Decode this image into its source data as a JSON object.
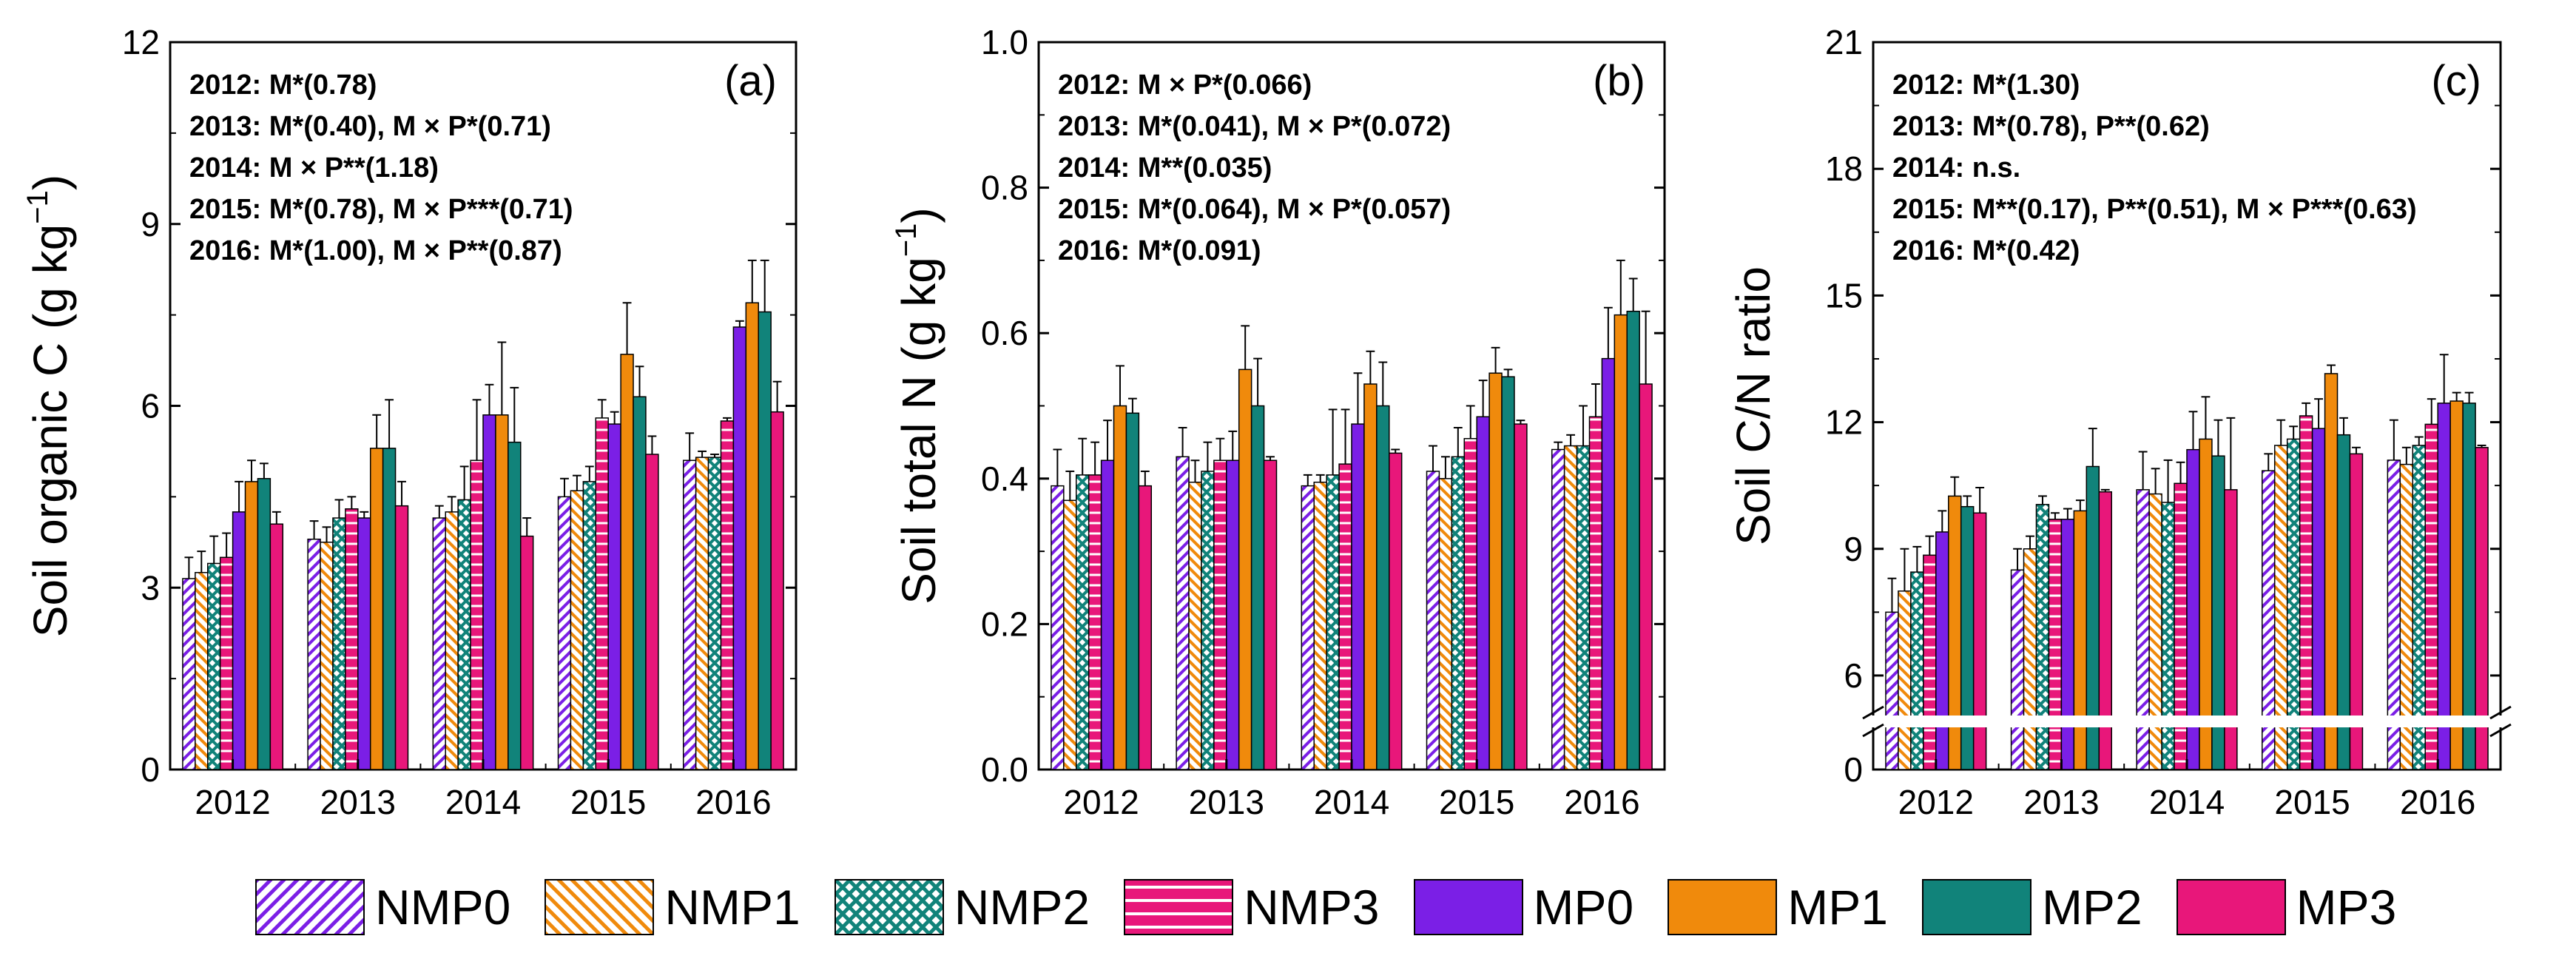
{
  "colors": {
    "purple": "#7b1fe6",
    "orange": "#f08a0c",
    "teal": "#11837a",
    "pink": "#e8177a"
  },
  "legend": [
    {
      "name": "NMP0",
      "color": "#7b1fe6",
      "pattern": "diag-up"
    },
    {
      "name": "NMP1",
      "color": "#f08a0c",
      "pattern": "diag-down"
    },
    {
      "name": "NMP2",
      "color": "#11837a",
      "pattern": "cross"
    },
    {
      "name": "NMP3",
      "color": "#e8177a",
      "pattern": "horiz"
    },
    {
      "name": "MP0",
      "color": "#7b1fe6",
      "pattern": "solid"
    },
    {
      "name": "MP1",
      "color": "#f08a0c",
      "pattern": "solid"
    },
    {
      "name": "MP2",
      "color": "#11837a",
      "pattern": "solid"
    },
    {
      "name": "MP3",
      "color": "#e8177a",
      "pattern": "solid"
    }
  ],
  "chart_data": [
    {
      "type": "bar",
      "panel_label": "(a)",
      "ylabel": "Soil organic C (g kg",
      "ylabel_sup": "−1",
      "ylabel_end": ")",
      "xlabel": "",
      "categories": [
        "2012",
        "2013",
        "2014",
        "2015",
        "2016"
      ],
      "ylim": [
        0,
        12
      ],
      "yticks": [
        0,
        3,
        6,
        9,
        12
      ],
      "ytick_labels": [
        "0",
        "3",
        "6",
        "9",
        "12"
      ],
      "axis_break": false,
      "annotations": [
        "2012: M*(0.78)",
        "2013: M*(0.40), M × P*(0.71)",
        "2014: M × P**(1.18)",
        "2015: M*(0.78), M × P***(0.71)",
        "2016: M*(1.00), M × P**(0.87)"
      ],
      "series": [
        {
          "name": "NMP0",
          "values": [
            3.15,
            3.8,
            4.15,
            4.5,
            5.1
          ],
          "errors": [
            0.35,
            0.3,
            0.2,
            0.3,
            0.45
          ]
        },
        {
          "name": "NMP1",
          "values": [
            3.25,
            3.75,
            4.25,
            4.6,
            5.15
          ],
          "errors": [
            0.35,
            0.25,
            0.25,
            0.25,
            0.1
          ]
        },
        {
          "name": "NMP2",
          "values": [
            3.4,
            4.15,
            4.45,
            4.75,
            5.15
          ],
          "errors": [
            0.45,
            0.3,
            0.55,
            0.25,
            0.05
          ]
        },
        {
          "name": "NMP3",
          "values": [
            3.5,
            4.3,
            5.1,
            5.8,
            5.75
          ],
          "errors": [
            0.4,
            0.2,
            1.0,
            0.3,
            0.05
          ]
        },
        {
          "name": "MP0",
          "values": [
            4.25,
            4.15,
            5.85,
            5.7,
            7.3
          ],
          "errors": [
            0.5,
            0.1,
            0.5,
            0.2,
            0.1
          ]
        },
        {
          "name": "MP1",
          "values": [
            4.75,
            5.3,
            5.85,
            6.85,
            7.7
          ],
          "errors": [
            0.35,
            0.55,
            1.2,
            0.85,
            0.7
          ]
        },
        {
          "name": "MP2",
          "values": [
            4.8,
            5.3,
            5.4,
            6.15,
            7.55
          ],
          "errors": [
            0.25,
            0.8,
            0.9,
            0.5,
            0.85
          ]
        },
        {
          "name": "MP3",
          "values": [
            4.05,
            4.35,
            3.85,
            5.2,
            5.9
          ],
          "errors": [
            0.2,
            0.4,
            0.3,
            0.3,
            0.5
          ]
        }
      ]
    },
    {
      "type": "bar",
      "panel_label": "(b)",
      "ylabel": "Soil total N (g kg",
      "ylabel_sup": "−1",
      "ylabel_end": ")",
      "xlabel": "",
      "categories": [
        "2012",
        "2013",
        "2014",
        "2015",
        "2016"
      ],
      "ylim": [
        0,
        1.0
      ],
      "yticks": [
        0,
        0.2,
        0.4,
        0.6,
        0.8,
        1.0
      ],
      "ytick_labels": [
        "0.0",
        "0.2",
        "0.4",
        "0.6",
        "0.8",
        "1.0"
      ],
      "axis_break": false,
      "annotations": [
        "2012: M × P*(0.066)",
        "2013: M*(0.041), M × P*(0.072)",
        "2014: M**(0.035)",
        "2015: M*(0.064), M × P*(0.057)",
        "2016: M*(0.091)"
      ],
      "series": [
        {
          "name": "NMP0",
          "values": [
            0.39,
            0.43,
            0.39,
            0.41,
            0.44
          ],
          "errors": [
            0.05,
            0.04,
            0.015,
            0.035,
            0.01
          ]
        },
        {
          "name": "NMP1",
          "values": [
            0.37,
            0.395,
            0.395,
            0.4,
            0.445
          ],
          "errors": [
            0.04,
            0.03,
            0.01,
            0.03,
            0.015
          ]
        },
        {
          "name": "NMP2",
          "values": [
            0.405,
            0.41,
            0.405,
            0.43,
            0.445
          ],
          "errors": [
            0.05,
            0.04,
            0.09,
            0.04,
            0.055
          ]
        },
        {
          "name": "NMP3",
          "values": [
            0.405,
            0.425,
            0.42,
            0.455,
            0.485
          ],
          "errors": [
            0.045,
            0.03,
            0.075,
            0.045,
            0.045
          ]
        },
        {
          "name": "MP0",
          "values": [
            0.425,
            0.425,
            0.475,
            0.485,
            0.565
          ],
          "errors": [
            0.055,
            0.04,
            0.07,
            0.05,
            0.07
          ]
        },
        {
          "name": "MP1",
          "values": [
            0.5,
            0.55,
            0.53,
            0.545,
            0.625
          ],
          "errors": [
            0.055,
            0.06,
            0.045,
            0.035,
            0.075
          ]
        },
        {
          "name": "MP2",
          "values": [
            0.49,
            0.5,
            0.5,
            0.54,
            0.63
          ],
          "errors": [
            0.02,
            0.065,
            0.06,
            0.01,
            0.045
          ]
        },
        {
          "name": "MP3",
          "values": [
            0.39,
            0.425,
            0.435,
            0.475,
            0.53
          ],
          "errors": [
            0.02,
            0.005,
            0.005,
            0.005,
            0.1
          ]
        }
      ]
    },
    {
      "type": "bar",
      "panel_label": "(c)",
      "ylabel": "Soil C/N ratio",
      "ylabel_sup": "",
      "ylabel_end": "",
      "xlabel": "",
      "categories": [
        "2012",
        "2013",
        "2014",
        "2015",
        "2016"
      ],
      "ylim": [
        0,
        21
      ],
      "yticks": [
        0,
        6,
        9,
        12,
        15,
        18,
        21
      ],
      "ytick_labels": [
        "0",
        "6",
        "9",
        "12",
        "15",
        "18",
        "21"
      ],
      "axis_break": true,
      "break_range": [
        3,
        5
      ],
      "annotations": [
        "2012: M*(1.30)",
        "2013: M*(0.78), P**(0.62)",
        "2014: n.s.",
        "2015: M**(0.17), P**(0.51), M × P***(0.63)",
        "2016: M*(0.42)"
      ],
      "series": [
        {
          "name": "NMP0",
          "values": [
            7.5,
            8.5,
            10.4,
            10.85,
            11.1
          ],
          "errors": [
            0.8,
            0.5,
            0.9,
            0.4,
            0.95
          ]
        },
        {
          "name": "NMP1",
          "values": [
            8.0,
            9.0,
            10.3,
            11.45,
            11.0
          ],
          "errors": [
            1.0,
            0.3,
            0.6,
            0.6,
            0.4
          ]
        },
        {
          "name": "NMP2",
          "values": [
            8.45,
            10.05,
            10.1,
            11.6,
            11.45
          ],
          "errors": [
            0.6,
            0.2,
            1.0,
            0.3,
            0.2
          ]
        },
        {
          "name": "NMP3",
          "values": [
            8.85,
            9.7,
            10.55,
            12.15,
            11.95
          ],
          "errors": [
            0.45,
            0.15,
            0.5,
            0.3,
            0.6
          ]
        },
        {
          "name": "MP0",
          "values": [
            9.4,
            9.7,
            11.35,
            11.85,
            12.45
          ],
          "errors": [
            0.5,
            0.25,
            0.9,
            0.7,
            1.15
          ]
        },
        {
          "name": "MP1",
          "values": [
            10.25,
            9.9,
            11.6,
            13.15,
            12.5
          ],
          "errors": [
            0.45,
            0.25,
            1.0,
            0.2,
            0.2
          ]
        },
        {
          "name": "MP2",
          "values": [
            10.0,
            10.95,
            11.2,
            11.7,
            12.45
          ],
          "errors": [
            0.25,
            0.9,
            0.85,
            0.4,
            0.25
          ]
        },
        {
          "name": "MP3",
          "values": [
            9.85,
            10.35,
            10.4,
            11.25,
            11.4
          ],
          "errors": [
            0.6,
            0.05,
            1.7,
            0.15,
            0.05
          ]
        }
      ]
    }
  ]
}
